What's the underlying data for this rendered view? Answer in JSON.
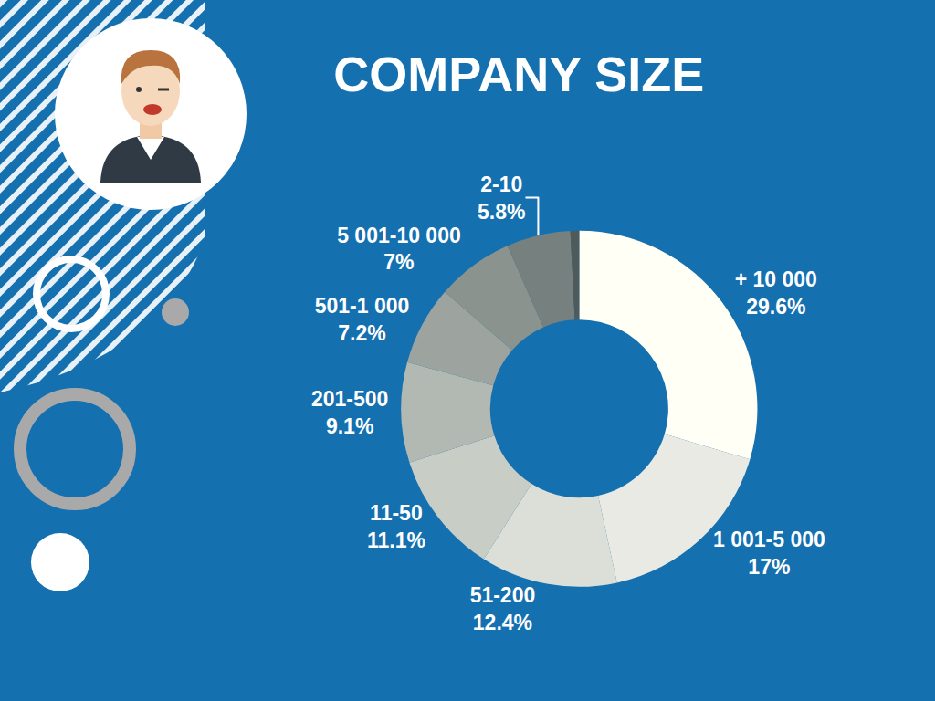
{
  "chart_data": {
    "type": "pie",
    "title": "COMPANY SIZE",
    "categories": [
      "+ 10 000",
      "1 001-5 000",
      "51-200",
      "11-50",
      "201-500",
      "501-1 000",
      "5 001-10 000",
      "2-10",
      null
    ],
    "values": [
      29.6,
      17,
      12.4,
      11.1,
      9.1,
      7.2,
      7,
      5.8,
      0.8
    ],
    "value_labels": [
      "29.6%",
      "17%",
      "12.4%",
      "11.1%",
      "9.1%",
      "7.2%",
      "7%",
      "5.8%",
      null
    ],
    "colors": [
      "#fffff5",
      "#e9eae3",
      "#dcdfd7",
      "#c8cdc6",
      "#b2b8b2",
      "#9da49f",
      "#8a938e",
      "#76807e",
      "#4f5b5b"
    ],
    "data_labels": true
  }
}
